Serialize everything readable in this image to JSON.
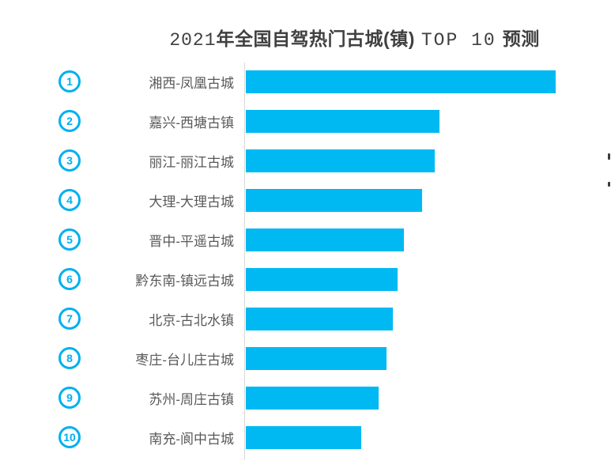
{
  "title": {
    "year": "2021",
    "main": "年全国自驾热门古城(镇)",
    "latin": "TOP 10",
    "suffix": "预测"
  },
  "colors": {
    "bar": "#00b9f2",
    "badge": "#00b0f0",
    "label_text": "#595959",
    "title_text": "#404040",
    "axis_line": "#d9d9d9",
    "background": "#ffffff"
  },
  "chart_data": {
    "type": "bar",
    "orientation": "horizontal",
    "title": "2021年全国自驾热门古城(镇) TOP 10 预测",
    "categories": [
      "湘西-凤凰古城",
      "嘉兴-西塘古镇",
      "丽江-丽江古城",
      "大理-大理古城",
      "晋中-平遥古城",
      "黔东南-镇远古城",
      "北京-古北水镇",
      "枣庄-台儿庄古城",
      "苏州-周庄古镇",
      "南充-阆中古城"
    ],
    "ranks": [
      "1",
      "2",
      "3",
      "4",
      "5",
      "6",
      "7",
      "8",
      "9",
      "10"
    ],
    "values_relative_pct": [
      100,
      62.5,
      61,
      57,
      51,
      49,
      47.5,
      45.5,
      42.9,
      37.2
    ],
    "values_are_estimates": true,
    "value_labels_shown": false,
    "x_axis_tick_labels_shown": false,
    "grid": false,
    "legend": false,
    "y_axis_line": true
  }
}
